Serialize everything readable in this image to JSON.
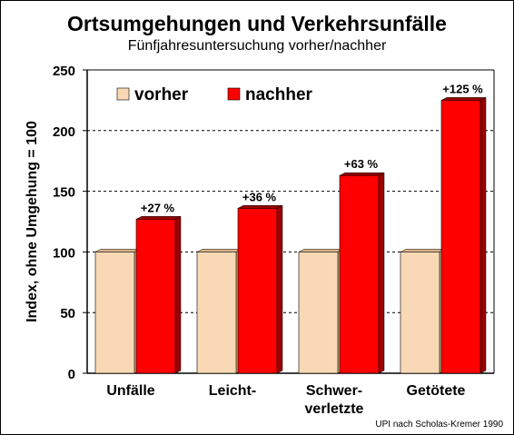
{
  "chart_data": {
    "type": "bar",
    "title": "Ortsumgehungen und Verkehrsunfälle",
    "subtitle": "Fünfjahresuntersuchung vorher/nachher",
    "xlabel": "",
    "ylabel": "Index, ohne Umgehung = 100",
    "ylim": [
      0,
      250
    ],
    "yticks": [
      "0",
      "50",
      "100",
      "150",
      "200",
      "250"
    ],
    "categories": [
      [
        "Unfälle"
      ],
      [
        "Leicht-"
      ],
      [
        "Schwer-",
        "verletzte"
      ],
      [
        "Getötete"
      ]
    ],
    "series": [
      {
        "name": "vorher",
        "color": "#f9d9b5",
        "side_color": "#d9b48a",
        "values": [
          100,
          100,
          100,
          100
        ]
      },
      {
        "name": "nachher",
        "color": "#ff0000",
        "side_color": "#990000",
        "values": [
          127,
          136,
          163,
          225
        ]
      }
    ],
    "data_labels": [
      "+27 %",
      "+36 %",
      "+63 %",
      "+125 %"
    ],
    "legend": "top-left",
    "grid": "horizontal dashed",
    "source": "UPI nach Scholas-Kremer 1990"
  }
}
